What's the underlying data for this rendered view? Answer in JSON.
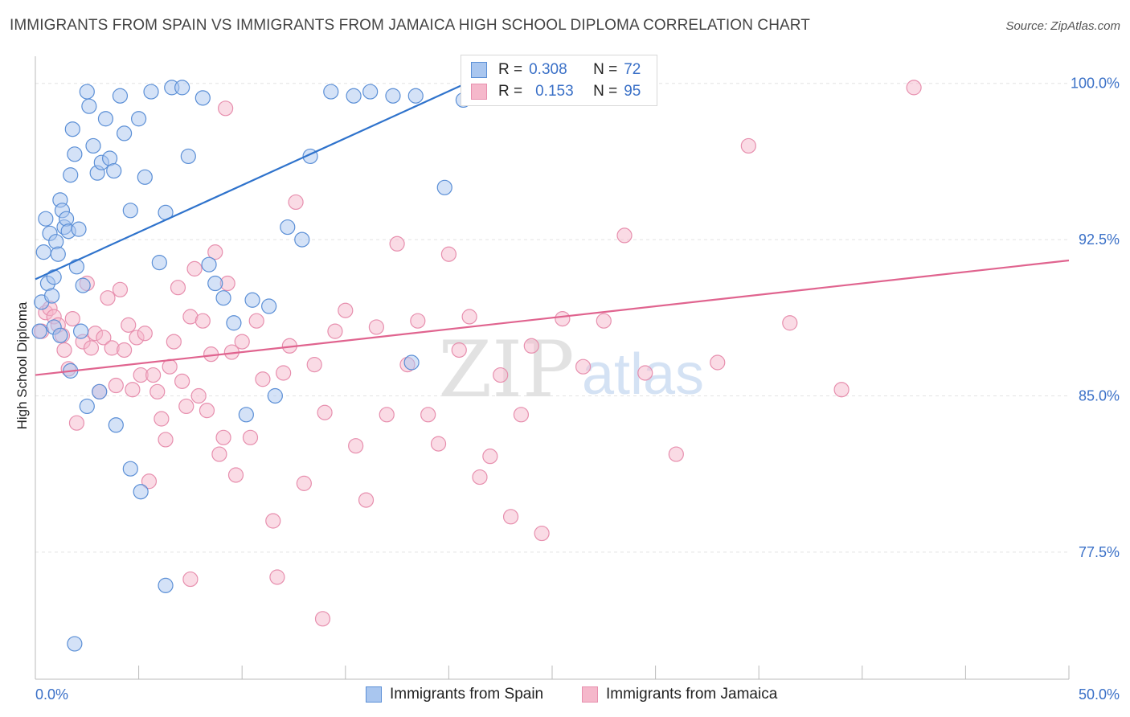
{
  "title": "IMMIGRANTS FROM SPAIN VS IMMIGRANTS FROM JAMAICA HIGH SCHOOL DIPLOMA CORRELATION CHART",
  "source": "Source: ZipAtlas.com",
  "watermark": {
    "zip": "ZIP",
    "atlas": "atlas"
  },
  "colors": {
    "spain_fill": "#a9c6ef",
    "spain_stroke": "#5b8fd6",
    "spain_line": "#2f73cc",
    "jamaica_fill": "#f5b8cb",
    "jamaica_stroke": "#e78fae",
    "jamaica_line": "#e0648f",
    "axis_text": "#3a70c7",
    "grid": "#e3e3e3"
  },
  "legend": {
    "r_label": "R =",
    "n_label": "N =",
    "spain": {
      "r": "0.308",
      "n": "72"
    },
    "jamaica": {
      "r": "0.153",
      "n": "95"
    }
  },
  "chart_data": {
    "type": "scatter",
    "title": "IMMIGRANTS FROM SPAIN VS IMMIGRANTS FROM JAMAICA HIGH SCHOOL DIPLOMA CORRELATION CHART",
    "xlabel": "",
    "ylabel": "High School Diploma",
    "xlim": [
      0,
      50
    ],
    "ylim": [
      71.4,
      101.3
    ],
    "x_tick_labels": [
      {
        "value": 0,
        "label": "0.0%"
      },
      {
        "value": 50,
        "label": "50.0%"
      }
    ],
    "y_tick_labels": [
      {
        "value": 100,
        "label": "100.0%"
      },
      {
        "value": 92.5,
        "label": "92.5%"
      },
      {
        "value": 85,
        "label": "85.0%"
      },
      {
        "value": 77.5,
        "label": "77.5%"
      }
    ],
    "grid": true,
    "legend_position": "top-center",
    "series": [
      {
        "name": "Immigrants from Spain",
        "trend": {
          "x": [
            0,
            21.5
          ],
          "y": [
            90.6,
            100.3
          ]
        },
        "points": [
          [
            0.2,
            88.1
          ],
          [
            0.3,
            89.5
          ],
          [
            0.4,
            91.9
          ],
          [
            0.5,
            93.5
          ],
          [
            0.6,
            90.4
          ],
          [
            0.7,
            92.8
          ],
          [
            0.8,
            89.8
          ],
          [
            0.9,
            90.7
          ],
          [
            1.0,
            92.4
          ],
          [
            1.1,
            91.8
          ],
          [
            1.2,
            94.4
          ],
          [
            1.3,
            93.9
          ],
          [
            1.4,
            93.1
          ],
          [
            1.5,
            93.5
          ],
          [
            1.6,
            92.9
          ],
          [
            1.7,
            95.6
          ],
          [
            1.8,
            97.8
          ],
          [
            1.9,
            96.6
          ],
          [
            2.0,
            91.2
          ],
          [
            2.1,
            93.0
          ],
          [
            2.3,
            90.3
          ],
          [
            2.5,
            99.6
          ],
          [
            2.6,
            98.9
          ],
          [
            2.8,
            97.0
          ],
          [
            3.0,
            95.7
          ],
          [
            3.2,
            96.2
          ],
          [
            3.4,
            98.3
          ],
          [
            3.6,
            96.4
          ],
          [
            3.8,
            95.8
          ],
          [
            4.1,
            99.4
          ],
          [
            4.3,
            97.6
          ],
          [
            4.6,
            93.9
          ],
          [
            5.0,
            98.3
          ],
          [
            5.3,
            95.5
          ],
          [
            5.6,
            99.6
          ],
          [
            6.0,
            91.4
          ],
          [
            6.3,
            93.8
          ],
          [
            6.6,
            99.8
          ],
          [
            7.1,
            99.8
          ],
          [
            7.4,
            96.5
          ],
          [
            8.1,
            99.3
          ],
          [
            8.4,
            91.3
          ],
          [
            8.7,
            90.4
          ],
          [
            9.1,
            89.7
          ],
          [
            9.6,
            88.5
          ],
          [
            10.2,
            84.1
          ],
          [
            10.5,
            89.6
          ],
          [
            11.3,
            89.3
          ],
          [
            11.6,
            85.0
          ],
          [
            12.2,
            93.1
          ],
          [
            12.9,
            92.5
          ],
          [
            13.3,
            96.5
          ],
          [
            14.3,
            99.6
          ],
          [
            15.4,
            99.4
          ],
          [
            16.2,
            99.6
          ],
          [
            17.3,
            99.4
          ],
          [
            18.4,
            99.4
          ],
          [
            18.2,
            86.6
          ],
          [
            19.8,
            95.0
          ],
          [
            20.7,
            99.2
          ],
          [
            21.3,
            100.0
          ],
          [
            0.9,
            88.3
          ],
          [
            1.2,
            87.9
          ],
          [
            1.7,
            86.2
          ],
          [
            2.2,
            88.1
          ],
          [
            2.5,
            84.5
          ],
          [
            3.1,
            85.2
          ],
          [
            3.9,
            83.6
          ],
          [
            4.6,
            81.5
          ],
          [
            5.1,
            80.4
          ],
          [
            6.3,
            75.9
          ],
          [
            1.9,
            73.1
          ]
        ]
      },
      {
        "name": "Immigrants from Jamaica",
        "trend": {
          "x": [
            0,
            50
          ],
          "y": [
            86.0,
            91.5
          ]
        },
        "points": [
          [
            0.3,
            88.1
          ],
          [
            0.5,
            89.0
          ],
          [
            0.7,
            89.2
          ],
          [
            0.9,
            88.8
          ],
          [
            1.1,
            88.4
          ],
          [
            1.3,
            87.9
          ],
          [
            1.4,
            87.2
          ],
          [
            1.6,
            86.3
          ],
          [
            1.8,
            88.7
          ],
          [
            2.0,
            83.7
          ],
          [
            2.3,
            87.6
          ],
          [
            2.5,
            90.4
          ],
          [
            2.7,
            87.3
          ],
          [
            2.9,
            88.0
          ],
          [
            3.1,
            85.2
          ],
          [
            3.3,
            87.8
          ],
          [
            3.5,
            89.7
          ],
          [
            3.7,
            87.3
          ],
          [
            3.9,
            85.5
          ],
          [
            4.1,
            90.1
          ],
          [
            4.3,
            87.2
          ],
          [
            4.5,
            88.4
          ],
          [
            4.7,
            85.3
          ],
          [
            4.9,
            87.8
          ],
          [
            5.1,
            86.0
          ],
          [
            5.3,
            88.0
          ],
          [
            5.5,
            80.9
          ],
          [
            5.7,
            86.0
          ],
          [
            5.9,
            85.2
          ],
          [
            6.1,
            83.9
          ],
          [
            6.3,
            82.9
          ],
          [
            6.5,
            86.4
          ],
          [
            6.7,
            87.6
          ],
          [
            6.9,
            90.2
          ],
          [
            7.1,
            85.7
          ],
          [
            7.3,
            84.5
          ],
          [
            7.5,
            88.8
          ],
          [
            7.7,
            91.1
          ],
          [
            7.9,
            85.0
          ],
          [
            8.1,
            88.6
          ],
          [
            8.3,
            84.3
          ],
          [
            8.5,
            87.0
          ],
          [
            8.7,
            91.9
          ],
          [
            8.9,
            82.2
          ],
          [
            9.1,
            83.0
          ],
          [
            9.3,
            90.4
          ],
          [
            9.5,
            87.1
          ],
          [
            9.7,
            81.2
          ],
          [
            10.0,
            87.6
          ],
          [
            10.4,
            83.0
          ],
          [
            10.7,
            88.6
          ],
          [
            11.0,
            85.8
          ],
          [
            11.5,
            79.0
          ],
          [
            12.0,
            86.1
          ],
          [
            12.3,
            87.4
          ],
          [
            12.6,
            94.3
          ],
          [
            13.0,
            80.8
          ],
          [
            13.5,
            86.5
          ],
          [
            14.0,
            84.2
          ],
          [
            14.5,
            88.1
          ],
          [
            15.0,
            89.1
          ],
          [
            15.5,
            82.6
          ],
          [
            16.0,
            80.0
          ],
          [
            16.5,
            88.3
          ],
          [
            17.0,
            84.1
          ],
          [
            17.5,
            92.3
          ],
          [
            18.0,
            86.5
          ],
          [
            18.5,
            88.6
          ],
          [
            19.0,
            84.1
          ],
          [
            19.5,
            82.7
          ],
          [
            20.0,
            91.8
          ],
          [
            20.5,
            87.2
          ],
          [
            21.0,
            88.8
          ],
          [
            21.5,
            81.1
          ],
          [
            22.0,
            82.1
          ],
          [
            22.5,
            86.0
          ],
          [
            23.0,
            79.2
          ],
          [
            23.5,
            84.1
          ],
          [
            24.0,
            87.4
          ],
          [
            24.5,
            78.4
          ],
          [
            25.5,
            88.7
          ],
          [
            26.5,
            86.4
          ],
          [
            27.5,
            88.6
          ],
          [
            28.5,
            92.7
          ],
          [
            29.5,
            86.1
          ],
          [
            31.0,
            82.2
          ],
          [
            33.0,
            86.6
          ],
          [
            34.5,
            97.0
          ],
          [
            36.5,
            88.5
          ],
          [
            39.0,
            85.3
          ],
          [
            11.7,
            76.3
          ],
          [
            13.9,
            74.3
          ],
          [
            7.5,
            76.2
          ],
          [
            9.2,
            98.8
          ],
          [
            42.5,
            99.8
          ]
        ]
      }
    ]
  }
}
